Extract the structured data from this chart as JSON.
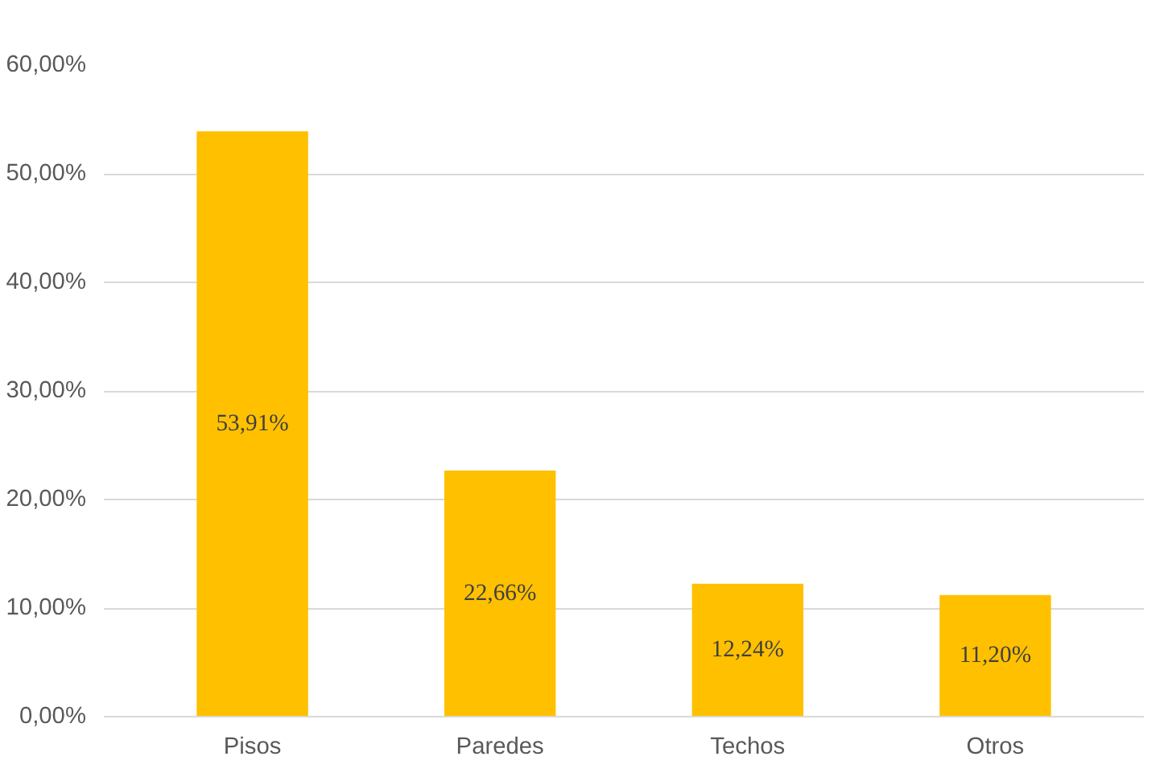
{
  "chart_data": {
    "type": "bar",
    "categories": [
      "Pisos",
      "Paredes",
      "Techos",
      "Otros"
    ],
    "values": [
      53.91,
      22.66,
      12.24,
      11.2
    ],
    "value_labels": [
      "53,91%",
      "22,66%",
      "12,24%",
      "11,20%"
    ],
    "color": "#ffc000",
    "ylim": [
      0,
      60
    ],
    "yticks": [
      {
        "value": 0,
        "label": "0,00%"
      },
      {
        "value": 10,
        "label": "10,00%"
      },
      {
        "value": 20,
        "label": "20,00%"
      },
      {
        "value": 30,
        "label": "30,00%"
      },
      {
        "value": 40,
        "label": "40,00%"
      },
      {
        "value": 50,
        "label": "50,00%"
      },
      {
        "value": 60,
        "label": "60,00%"
      }
    ],
    "grid": "y"
  }
}
